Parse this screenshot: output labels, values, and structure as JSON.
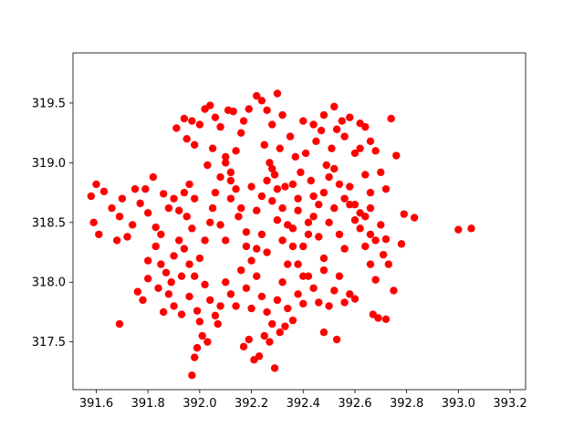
{
  "chart_data": {
    "type": "scatter",
    "title": "",
    "xlabel": "",
    "ylabel": "",
    "xlim": [
      391.51,
      393.26
    ],
    "ylim": [
      317.1,
      319.92
    ],
    "x_ticks": [
      391.6,
      391.8,
      392.0,
      392.2,
      392.4,
      392.6,
      392.8,
      393.0,
      393.2
    ],
    "x_tick_labels": [
      "391.6",
      "391.8",
      "392.0",
      "392.2",
      "392.4",
      "392.6",
      "392.8",
      "393.0",
      "393.2"
    ],
    "y_ticks": [
      317.5,
      318.0,
      318.5,
      319.0,
      319.5
    ],
    "y_tick_labels": [
      "317.5",
      "318.0",
      "318.5",
      "319.0",
      "319.5"
    ],
    "grid": false,
    "legend": "none",
    "marker": "circle",
    "series": [
      {
        "color": "#ff0000",
        "points": [
          [
            391.6,
            318.82
          ],
          [
            391.58,
            318.72
          ],
          [
            391.59,
            318.5
          ],
          [
            391.61,
            318.4
          ],
          [
            391.63,
            318.76
          ],
          [
            391.66,
            318.62
          ],
          [
            391.69,
            318.55
          ],
          [
            391.7,
            318.7
          ],
          [
            391.74,
            318.48
          ],
          [
            391.77,
            318.66
          ],
          [
            391.8,
            318.58
          ],
          [
            391.83,
            318.46
          ],
          [
            391.86,
            318.74
          ],
          [
            391.68,
            318.35
          ],
          [
            391.72,
            318.38
          ],
          [
            391.75,
            318.78
          ],
          [
            391.79,
            318.78
          ],
          [
            391.82,
            318.88
          ],
          [
            391.85,
            318.4
          ],
          [
            391.88,
            318.62
          ],
          [
            391.69,
            317.65
          ],
          [
            391.76,
            317.92
          ],
          [
            391.78,
            317.85
          ],
          [
            391.8,
            318.03
          ],
          [
            391.84,
            317.95
          ],
          [
            391.83,
            318.3
          ],
          [
            391.88,
            317.9
          ],
          [
            391.9,
            317.8
          ],
          [
            391.86,
            317.75
          ],
          [
            391.93,
            317.73
          ],
          [
            391.96,
            317.88
          ],
          [
            391.9,
            318.22
          ],
          [
            391.93,
            318.05
          ],
          [
            391.95,
            318.55
          ],
          [
            391.97,
            318.45
          ],
          [
            391.98,
            318.7
          ],
          [
            391.99,
            317.76
          ],
          [
            392.0,
            317.67
          ],
          [
            392.01,
            317.55
          ],
          [
            391.99,
            317.45
          ],
          [
            391.98,
            317.37
          ],
          [
            391.97,
            317.22
          ],
          [
            392.03,
            317.5
          ],
          [
            392.07,
            317.65
          ],
          [
            391.91,
            319.29
          ],
          [
            391.94,
            319.37
          ],
          [
            391.97,
            319.35
          ],
          [
            392.0,
            319.32
          ],
          [
            391.95,
            319.2
          ],
          [
            391.98,
            319.15
          ],
          [
            392.02,
            319.45
          ],
          [
            392.04,
            319.48
          ],
          [
            392.06,
            319.38
          ],
          [
            392.08,
            319.3
          ],
          [
            392.05,
            319.12
          ],
          [
            392.03,
            318.98
          ],
          [
            392.1,
            319.05
          ],
          [
            392.12,
            318.92
          ],
          [
            392.14,
            319.1
          ],
          [
            392.16,
            319.25
          ],
          [
            392.11,
            319.44
          ],
          [
            392.13,
            319.43
          ],
          [
            392.17,
            319.35
          ],
          [
            392.19,
            319.45
          ],
          [
            392.22,
            319.56
          ],
          [
            392.24,
            319.52
          ],
          [
            392.26,
            319.44
          ],
          [
            392.28,
            319.32
          ],
          [
            392.3,
            319.58
          ],
          [
            392.32,
            319.4
          ],
          [
            392.25,
            319.15
          ],
          [
            392.27,
            319.0
          ],
          [
            392.29,
            318.9
          ],
          [
            392.31,
            319.12
          ],
          [
            392.33,
            318.8
          ],
          [
            392.35,
            319.22
          ],
          [
            392.37,
            319.05
          ],
          [
            392.39,
            318.92
          ],
          [
            392.41,
            319.08
          ],
          [
            392.43,
            318.85
          ],
          [
            392.45,
            319.18
          ],
          [
            392.47,
            319.27
          ],
          [
            392.49,
            318.98
          ],
          [
            392.51,
            319.12
          ],
          [
            392.53,
            319.28
          ],
          [
            392.55,
            319.35
          ],
          [
            392.58,
            319.38
          ],
          [
            392.6,
            319.08
          ],
          [
            392.62,
            319.33
          ],
          [
            392.64,
            319.3
          ],
          [
            392.66,
            319.18
          ],
          [
            392.68,
            319.1
          ],
          [
            392.4,
            319.35
          ],
          [
            392.44,
            319.32
          ],
          [
            392.48,
            319.4
          ],
          [
            392.52,
            319.47
          ],
          [
            392.56,
            319.22
          ],
          [
            392.62,
            319.12
          ],
          [
            392.64,
            318.9
          ],
          [
            392.66,
            318.75
          ],
          [
            392.7,
            318.92
          ],
          [
            392.72,
            318.78
          ],
          [
            392.76,
            319.06
          ],
          [
            392.74,
            319.37
          ],
          [
            392.05,
            318.62
          ],
          [
            392.08,
            318.48
          ],
          [
            392.1,
            318.35
          ],
          [
            392.12,
            318.7
          ],
          [
            392.15,
            318.55
          ],
          [
            392.18,
            318.42
          ],
          [
            392.2,
            318.8
          ],
          [
            392.22,
            318.6
          ],
          [
            392.24,
            318.4
          ],
          [
            392.26,
            318.25
          ],
          [
            392.28,
            318.68
          ],
          [
            392.3,
            318.52
          ],
          [
            392.32,
            318.35
          ],
          [
            392.34,
            318.15
          ],
          [
            392.36,
            318.45
          ],
          [
            392.38,
            318.6
          ],
          [
            392.4,
            318.3
          ],
          [
            392.42,
            318.5
          ],
          [
            392.44,
            318.72
          ],
          [
            392.46,
            318.38
          ],
          [
            392.48,
            318.2
          ],
          [
            392.5,
            318.5
          ],
          [
            392.52,
            318.62
          ],
          [
            392.54,
            318.4
          ],
          [
            392.56,
            318.28
          ],
          [
            392.58,
            318.65
          ],
          [
            392.6,
            318.52
          ],
          [
            392.62,
            318.45
          ],
          [
            392.64,
            318.3
          ],
          [
            392.66,
            318.4
          ],
          [
            392.68,
            318.35
          ],
          [
            392.7,
            318.48
          ],
          [
            392.72,
            318.36
          ],
          [
            392.71,
            318.23
          ],
          [
            392.68,
            318.02
          ],
          [
            392.66,
            318.15
          ],
          [
            392.73,
            318.15
          ],
          [
            392.75,
            317.93
          ],
          [
            392.78,
            318.32
          ],
          [
            392.79,
            318.57
          ],
          [
            392.83,
            318.54
          ],
          [
            393.0,
            318.44
          ],
          [
            393.05,
            318.45
          ],
          [
            392.1,
            318.0
          ],
          [
            392.12,
            317.9
          ],
          [
            392.14,
            317.8
          ],
          [
            392.16,
            318.1
          ],
          [
            392.18,
            317.95
          ],
          [
            392.2,
            317.78
          ],
          [
            392.22,
            318.05
          ],
          [
            392.24,
            317.88
          ],
          [
            392.26,
            317.75
          ],
          [
            392.28,
            317.65
          ],
          [
            392.3,
            317.85
          ],
          [
            392.32,
            318.0
          ],
          [
            392.34,
            317.78
          ],
          [
            392.36,
            317.68
          ],
          [
            392.38,
            317.9
          ],
          [
            392.4,
            317.82
          ],
          [
            392.42,
            318.05
          ],
          [
            392.44,
            317.95
          ],
          [
            392.46,
            317.83
          ],
          [
            392.48,
            318.1
          ],
          [
            392.5,
            317.8
          ],
          [
            392.52,
            317.93
          ],
          [
            392.54,
            318.05
          ],
          [
            392.56,
            317.83
          ],
          [
            392.58,
            317.9
          ],
          [
            392.6,
            317.86
          ],
          [
            392.25,
            317.55
          ],
          [
            392.27,
            317.5
          ],
          [
            392.23,
            317.38
          ],
          [
            392.21,
            317.35
          ],
          [
            392.19,
            317.52
          ],
          [
            392.17,
            317.46
          ],
          [
            392.29,
            317.28
          ],
          [
            392.33,
            317.63
          ],
          [
            392.31,
            317.58
          ],
          [
            392.48,
            317.58
          ],
          [
            392.53,
            317.52
          ],
          [
            392.67,
            317.73
          ],
          [
            392.69,
            317.7
          ],
          [
            392.72,
            317.69
          ],
          [
            392.36,
            318.3
          ],
          [
            392.38,
            318.15
          ],
          [
            392.4,
            318.05
          ],
          [
            392.42,
            318.4
          ],
          [
            392.44,
            318.55
          ],
          [
            392.46,
            318.65
          ],
          [
            392.48,
            318.75
          ],
          [
            392.5,
            318.88
          ],
          [
            392.52,
            318.95
          ],
          [
            392.54,
            318.82
          ],
          [
            392.56,
            318.7
          ],
          [
            392.58,
            318.8
          ],
          [
            392.6,
            318.65
          ],
          [
            392.62,
            318.58
          ],
          [
            392.64,
            318.55
          ],
          [
            392.66,
            318.62
          ],
          [
            391.92,
            318.35
          ],
          [
            391.94,
            318.28
          ],
          [
            391.96,
            318.15
          ],
          [
            391.98,
            318.05
          ],
          [
            392.0,
            318.2
          ],
          [
            392.02,
            318.35
          ],
          [
            392.04,
            318.5
          ],
          [
            392.06,
            318.75
          ],
          [
            392.08,
            318.88
          ],
          [
            392.1,
            319.0
          ],
          [
            392.12,
            318.85
          ],
          [
            392.14,
            318.78
          ],
          [
            392.16,
            318.62
          ],
          [
            392.18,
            318.3
          ],
          [
            392.2,
            318.18
          ],
          [
            392.22,
            318.28
          ],
          [
            392.24,
            318.72
          ],
          [
            392.26,
            318.85
          ],
          [
            392.28,
            318.95
          ],
          [
            392.3,
            318.78
          ],
          [
            392.32,
            318.62
          ],
          [
            392.34,
            318.48
          ],
          [
            392.36,
            318.82
          ],
          [
            392.38,
            318.7
          ],
          [
            392.02,
            317.98
          ],
          [
            392.04,
            317.85
          ],
          [
            392.06,
            317.72
          ],
          [
            392.08,
            317.8
          ],
          [
            391.9,
            318.7
          ],
          [
            391.92,
            318.6
          ],
          [
            391.94,
            318.75
          ],
          [
            391.96,
            318.82
          ],
          [
            391.85,
            318.15
          ],
          [
            391.87,
            318.08
          ],
          [
            391.89,
            318.0
          ],
          [
            391.8,
            318.18
          ]
        ]
      }
    ]
  }
}
